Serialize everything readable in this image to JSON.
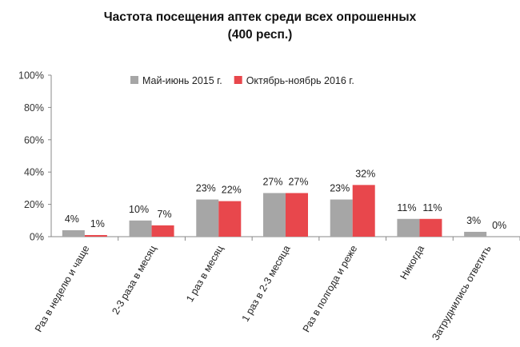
{
  "chart_data": {
    "type": "bar",
    "title": "Частота посещения аптек среди всех опрошенных",
    "subtitle": "(400 респ.)",
    "categories": [
      "Раз в неделю и чаще",
      "2-3 раза в месяц",
      "1 раз в месяц",
      "1 раз в 2-3 месяца",
      "Раз в полгода и реже",
      "Никогда",
      "Затруднились ответить"
    ],
    "series": [
      {
        "name": "Май-июнь 2015 г.",
        "color": "#a6a6a6",
        "values": [
          4,
          10,
          23,
          27,
          23,
          11,
          3
        ],
        "labels": [
          "4%",
          "10%",
          "23%",
          "27%",
          "23%",
          "11%",
          "3%"
        ]
      },
      {
        "name": "Октябрь-ноябрь 2016 г.",
        "color": "#e8474c",
        "values": [
          1,
          7,
          22,
          27,
          32,
          11,
          0
        ],
        "labels": [
          "1%",
          "7%",
          "22%",
          "27%",
          "32%",
          "11%",
          "0%"
        ]
      }
    ],
    "yticks": [
      "0%",
      "20%",
      "40%",
      "60%",
      "80%",
      "100%"
    ],
    "ylim": [
      0,
      100
    ],
    "grid": false,
    "legend": "top-center"
  }
}
